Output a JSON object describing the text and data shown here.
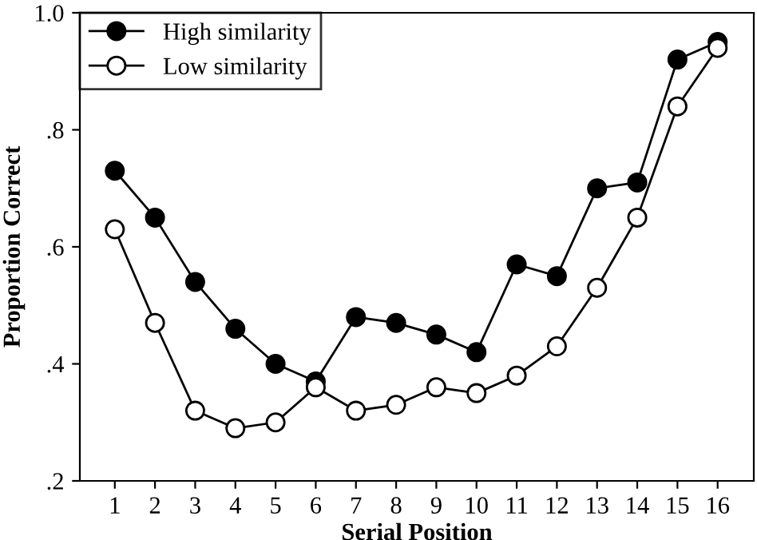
{
  "chart_data": {
    "type": "line",
    "xlabel": "Serial Position",
    "ylabel": "Proportion Correct",
    "categories": [
      "1",
      "2",
      "3",
      "4",
      "5",
      "6",
      "7",
      "8",
      "9",
      "10",
      "11",
      "12",
      "13",
      "14",
      "15",
      "16"
    ],
    "series": [
      {
        "name": "High similarity",
        "color": "#000000",
        "marker": "circle",
        "values": [
          0.73,
          0.65,
          0.54,
          0.46,
          0.4,
          0.37,
          0.48,
          0.47,
          0.45,
          0.42,
          0.57,
          0.55,
          0.7,
          0.71,
          0.92,
          0.95
        ]
      },
      {
        "name": "Low similarity",
        "color": "#000000",
        "marker": "circle",
        "values": [
          0.63,
          0.47,
          0.32,
          0.29,
          0.3,
          0.36,
          0.32,
          0.33,
          0.36,
          0.35,
          0.38,
          0.43,
          0.53,
          0.65,
          0.84,
          0.94
        ]
      }
    ],
    "ylim": [
      0.2,
      1.0
    ],
    "yticks": [
      {
        "value": 0.2,
        "label": ".2"
      },
      {
        "value": 0.4,
        "label": ".4"
      },
      {
        "value": 0.6,
        "label": ".6"
      },
      {
        "value": 0.8,
        "label": ".8"
      },
      {
        "value": 1.0,
        "label": "1.0"
      }
    ],
    "legend": "top left",
    "grid": false,
    "line_style": "solid"
  }
}
